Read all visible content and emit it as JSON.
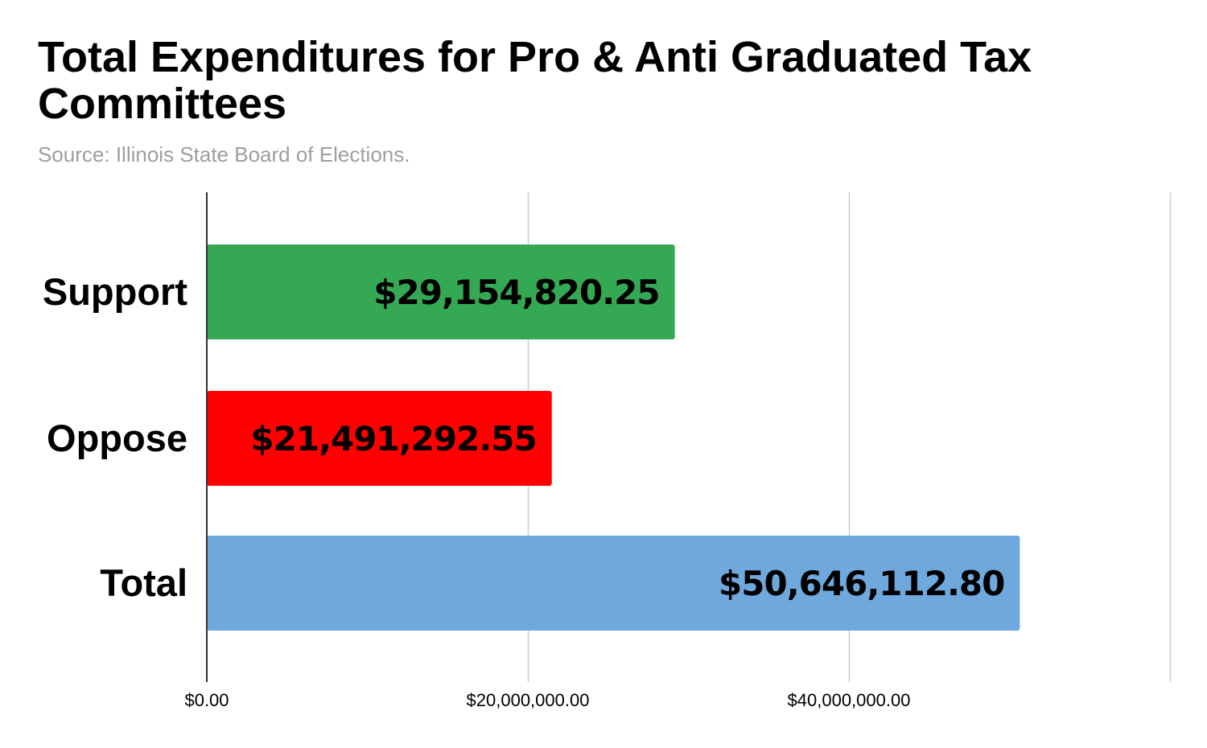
{
  "title": "Total Expenditures for Pro & Anti Graduated Tax Committees",
  "subtitle": "Source: Illinois State Board of Elections.",
  "chart_data": {
    "type": "bar",
    "orientation": "horizontal",
    "categories": [
      "Support",
      "Oppose",
      "Total"
    ],
    "values": [
      29154820.25,
      21491292.55,
      50646112.8
    ],
    "value_labels": [
      "$29,154,820.25",
      "$21,491,292.55",
      "$50,646,112.80"
    ],
    "colors": [
      "#34a853",
      "#ff0000",
      "#6fa8dc"
    ],
    "xlim": [
      0,
      60000000
    ],
    "x_ticks": [
      0,
      20000000,
      40000000
    ],
    "x_tick_labels": [
      "$0.00",
      "$20,000,000.00",
      "$40,000,000.00"
    ],
    "grid": true,
    "legend": "none"
  }
}
